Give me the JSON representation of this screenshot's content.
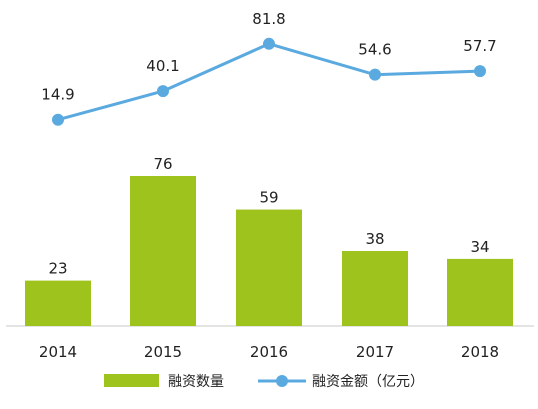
{
  "chart_data": {
    "type": "bar",
    "categories": [
      "2014",
      "2015",
      "2016",
      "2017",
      "2018"
    ],
    "series": [
      {
        "name": "融资数量",
        "type": "bar",
        "color": "#9dc31c",
        "values": [
          23,
          76,
          59,
          38,
          34
        ]
      },
      {
        "name": "融资金额（亿元）",
        "type": "line",
        "color": "#5aaae0",
        "values": [
          14.9,
          40.1,
          81.8,
          54.6,
          57.7
        ]
      }
    ],
    "grid": false,
    "legend_position": "bottom"
  }
}
